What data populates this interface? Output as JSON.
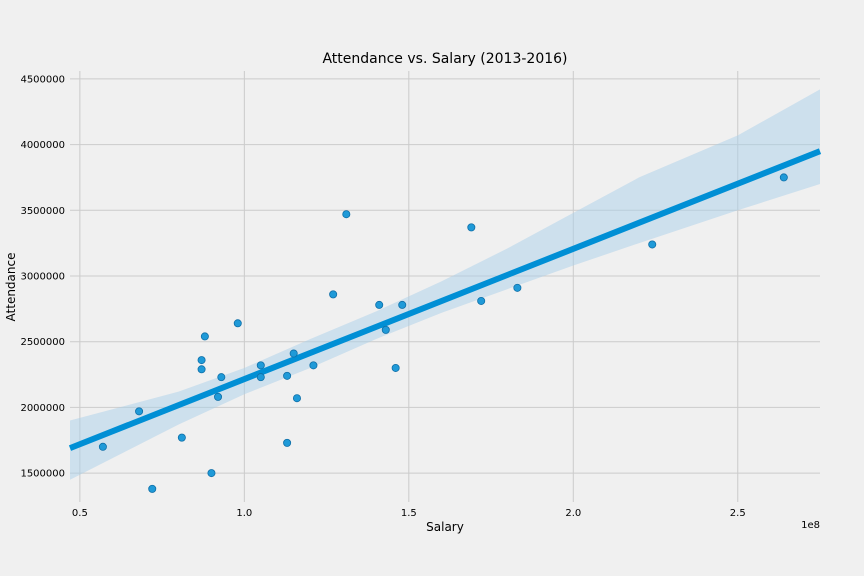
{
  "chart_data": {
    "type": "scatter",
    "title": "Attendance vs. Salary (2013-2016)",
    "xlabel": "Salary",
    "ylabel": "Attendance",
    "x_offset_label": "1e8",
    "xlim": [
      0.47,
      2.75
    ],
    "ylim": [
      1280000,
      4560000
    ],
    "xticks": [
      0.5,
      1.0,
      1.5,
      2.0,
      2.5
    ],
    "xtick_labels": [
      "0.5",
      "1.0",
      "1.5",
      "2.0",
      "2.5"
    ],
    "yticks": [
      1500000,
      2000000,
      2500000,
      3000000,
      3500000,
      4000000,
      4500000
    ],
    "ytick_labels": [
      "1500000",
      "2000000",
      "2500000",
      "3000000",
      "3500000",
      "4000000",
      "4500000"
    ],
    "grid": true,
    "color": "#008fd5",
    "band_color": "#a9d0e9",
    "points": [
      {
        "x": 0.57,
        "y": 1700000
      },
      {
        "x": 0.68,
        "y": 1970000
      },
      {
        "x": 0.72,
        "y": 1380000
      },
      {
        "x": 0.81,
        "y": 1770000
      },
      {
        "x": 0.87,
        "y": 2360000
      },
      {
        "x": 0.87,
        "y": 2290000
      },
      {
        "x": 0.88,
        "y": 2540000
      },
      {
        "x": 0.9,
        "y": 1500000
      },
      {
        "x": 0.92,
        "y": 2080000
      },
      {
        "x": 0.93,
        "y": 2230000
      },
      {
        "x": 0.98,
        "y": 2640000
      },
      {
        "x": 1.05,
        "y": 2320000
      },
      {
        "x": 1.05,
        "y": 2230000
      },
      {
        "x": 1.13,
        "y": 2240000
      },
      {
        "x": 1.13,
        "y": 1730000
      },
      {
        "x": 1.15,
        "y": 2410000
      },
      {
        "x": 1.16,
        "y": 2070000
      },
      {
        "x": 1.21,
        "y": 2320000
      },
      {
        "x": 1.27,
        "y": 2860000
      },
      {
        "x": 1.31,
        "y": 3470000
      },
      {
        "x": 1.41,
        "y": 2780000
      },
      {
        "x": 1.43,
        "y": 2590000
      },
      {
        "x": 1.46,
        "y": 2300000
      },
      {
        "x": 1.48,
        "y": 2780000
      },
      {
        "x": 1.69,
        "y": 3370000
      },
      {
        "x": 1.72,
        "y": 2810000
      },
      {
        "x": 1.83,
        "y": 2910000
      },
      {
        "x": 2.24,
        "y": 3240000
      },
      {
        "x": 2.64,
        "y": 3750000
      }
    ],
    "regression": [
      {
        "x": 0.47,
        "y": 1690000
      },
      {
        "x": 2.75,
        "y": 3950000
      }
    ],
    "confidence_band": {
      "x": [
        0.47,
        0.8,
        1.0,
        1.2,
        1.4,
        1.6,
        1.8,
        2.0,
        2.2,
        2.5,
        2.75
      ],
      "upper": [
        1900000,
        2120000,
        2300000,
        2520000,
        2730000,
        2960000,
        3210000,
        3480000,
        3750000,
        4070000,
        4420000
      ],
      "lower": [
        1450000,
        1870000,
        2100000,
        2300000,
        2520000,
        2720000,
        2900000,
        3080000,
        3250000,
        3500000,
        3700000
      ]
    }
  }
}
